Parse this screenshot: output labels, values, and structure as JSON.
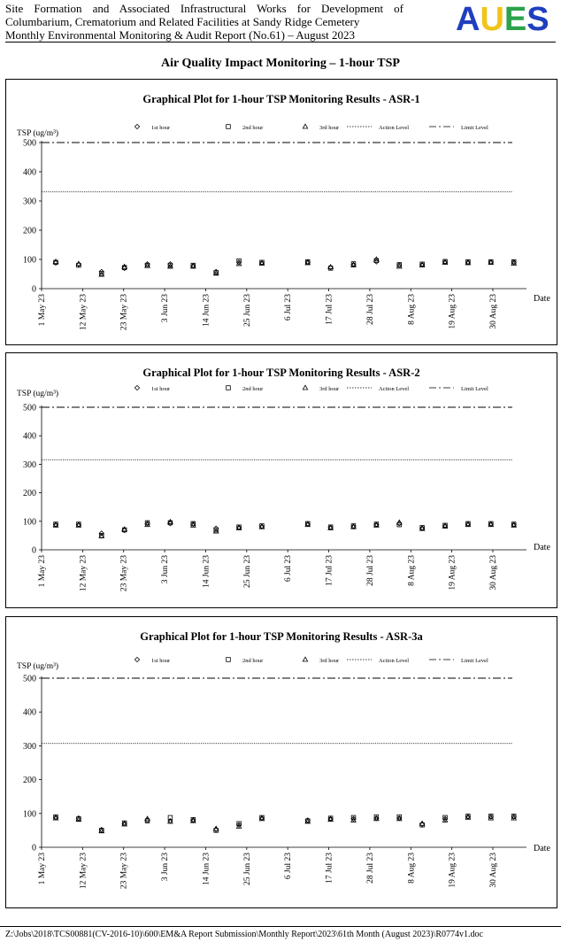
{
  "header": {
    "line1": "Site Formation and Associated Infrastructural Works for Development of",
    "line2": "Columbarium, Crematorium and Related Facilities at Sandy Ridge Cemetery",
    "line3": "Monthly Environmental Monitoring & Audit Report (No.61) – August 2023",
    "logo_text": "AUES",
    "logo_colors": [
      "#1f3fbf",
      "#f0c419",
      "#2aa34a",
      "#1f3fbf"
    ]
  },
  "section_title": "Air Quality Impact Monitoring – 1-hour TSP",
  "footer": "Z:\\Jobs\\2018\\TCS00881(CV-2016-10)\\600\\EM&A Report Submission\\Monthly Report\\2023\\61th Month (August 2023)\\R0774v1.doc",
  "chart_data": [
    {
      "type": "scatter",
      "title": "Graphical  Plot for 1-hour TSP Monitoring Results - ASR-1",
      "ylabel": "TSP (ug/m³)",
      "xlabel": "Date",
      "ylim": [
        0,
        500
      ],
      "yticks": [
        0,
        100,
        200,
        300,
        400,
        500
      ],
      "xlim": [
        "2023-05-01",
        "2023-08-30"
      ],
      "xticks": [
        "1 May 23",
        "12 May 23",
        "23 May 23",
        "3 Jun 23",
        "14 Jun 23",
        "25 Jun 23",
        "6 Jul 23",
        "17 Jul 23",
        "28 Jul 23",
        "8 Aug 23",
        "19 Aug 23",
        "30 Aug 23"
      ],
      "legend": [
        "1st hour",
        "2nd hour",
        "3rd hour",
        "Action Level",
        "Limit Level"
      ],
      "action_level": 331,
      "limit_level": 500,
      "dates": [
        "2023-05-01",
        "2023-05-07",
        "2023-05-13",
        "2023-05-19",
        "2023-05-25",
        "2023-05-31",
        "2023-06-06",
        "2023-06-12",
        "2023-06-18",
        "2023-06-24",
        "2023-07-06",
        "2023-07-12",
        "2023-07-18",
        "2023-07-24",
        "2023-07-30",
        "2023-08-05",
        "2023-08-11",
        "2023-08-17",
        "2023-08-23",
        "2023-08-29"
      ],
      "series": [
        {
          "name": "1st hour",
          "values": [
            88,
            83,
            58,
            70,
            84,
            84,
            78,
            58,
            90,
            88,
            91,
            72,
            82,
            92,
            81,
            82,
            91,
            90,
            91,
            90
          ]
        },
        {
          "name": "2nd hour",
          "values": [
            90,
            80,
            52,
            72,
            80,
            80,
            80,
            55,
            95,
            90,
            92,
            70,
            85,
            96,
            82,
            84,
            93,
            92,
            92,
            92
          ]
        },
        {
          "name": "3rd hour",
          "values": [
            92,
            85,
            48,
            75,
            78,
            76,
            76,
            52,
            85,
            86,
            88,
            74,
            80,
            100,
            76,
            80,
            89,
            88,
            89,
            86
          ]
        }
      ]
    },
    {
      "type": "scatter",
      "title": "Graphical  Plot for 1-hour TSP Monitoring Results - ASR-2",
      "ylabel": "TSP (ug/m³)",
      "xlabel": "Date",
      "ylim": [
        0,
        500
      ],
      "yticks": [
        0,
        100,
        200,
        300,
        400,
        500
      ],
      "xlim": [
        "2023-05-01",
        "2023-08-30"
      ],
      "xticks": [
        "1 May 23",
        "12 May 23",
        "23 May 23",
        "3 Jun 23",
        "14 Jun 23",
        "25 Jun 23",
        "6 Jul 23",
        "17 Jul 23",
        "28 Jul 23",
        "8 Aug 23",
        "19 Aug 23",
        "30 Aug 23"
      ],
      "legend": [
        "1st hour",
        "2nd hour",
        "3rd hour",
        "Action Level",
        "Limit Level"
      ],
      "action_level": 316,
      "limit_level": 500,
      "dates": [
        "2023-05-01",
        "2023-05-07",
        "2023-05-13",
        "2023-05-19",
        "2023-05-25",
        "2023-05-31",
        "2023-06-06",
        "2023-06-12",
        "2023-06-18",
        "2023-06-24",
        "2023-07-06",
        "2023-07-12",
        "2023-07-18",
        "2023-07-24",
        "2023-07-30",
        "2023-08-05",
        "2023-08-11",
        "2023-08-17",
        "2023-08-23",
        "2023-08-29"
      ],
      "series": [
        {
          "name": "1st hour",
          "values": [
            88,
            88,
            58,
            68,
            92,
            92,
            90,
            75,
            78,
            82,
            90,
            78,
            82,
            88,
            92,
            76,
            84,
            90,
            90,
            88
          ]
        },
        {
          "name": "2nd hour",
          "values": [
            90,
            90,
            50,
            70,
            95,
            95,
            92,
            70,
            80,
            84,
            92,
            80,
            84,
            90,
            88,
            78,
            86,
            92,
            92,
            90
          ]
        },
        {
          "name": "3rd hour",
          "values": [
            86,
            86,
            48,
            72,
            88,
            98,
            86,
            65,
            76,
            80,
            88,
            76,
            80,
            86,
            96,
            74,
            82,
            88,
            88,
            86
          ]
        }
      ]
    },
    {
      "type": "scatter",
      "title": "Graphical  Plot for 1-hour TSP Monitoring Results - ASR-3a",
      "ylabel": "TSP (ug/m³)",
      "xlabel": "Date",
      "ylim": [
        0,
        500
      ],
      "yticks": [
        0,
        100,
        200,
        300,
        400,
        500
      ],
      "xlim": [
        "2023-05-01",
        "2023-08-30"
      ],
      "xticks": [
        "1 May 23",
        "12 May 23",
        "23 May 23",
        "3 Jun 23",
        "14 Jun 23",
        "25 Jun 23",
        "6 Jul 23",
        "17 Jul 23",
        "28 Jul 23",
        "8 Aug 23",
        "19 Aug 23",
        "30 Aug 23"
      ],
      "legend": [
        "1st hour",
        "2nd hour",
        "3rd hour",
        "Action Level",
        "Limit Level"
      ],
      "action_level": 307,
      "limit_level": 500,
      "dates": [
        "2023-05-01",
        "2023-05-07",
        "2023-05-13",
        "2023-05-19",
        "2023-05-25",
        "2023-05-31",
        "2023-06-06",
        "2023-06-12",
        "2023-06-18",
        "2023-06-24",
        "2023-07-06",
        "2023-07-12",
        "2023-07-18",
        "2023-07-24",
        "2023-07-30",
        "2023-08-05",
        "2023-08-11",
        "2023-08-17",
        "2023-08-23",
        "2023-08-29"
      ],
      "series": [
        {
          "name": "1st hour",
          "values": [
            88,
            86,
            52,
            70,
            80,
            78,
            80,
            52,
            66,
            86,
            80,
            84,
            84,
            86,
            86,
            68,
            84,
            90,
            90,
            90
          ]
        },
        {
          "name": "2nd hour",
          "values": [
            90,
            84,
            50,
            72,
            78,
            88,
            82,
            50,
            70,
            88,
            78,
            86,
            88,
            90,
            90,
            66,
            88,
            92,
            92,
            92
          ]
        },
        {
          "name": "3rd hour",
          "values": [
            86,
            82,
            48,
            68,
            84,
            76,
            78,
            55,
            62,
            84,
            76,
            82,
            80,
            84,
            84,
            70,
            80,
            88,
            86,
            86
          ]
        }
      ]
    }
  ]
}
